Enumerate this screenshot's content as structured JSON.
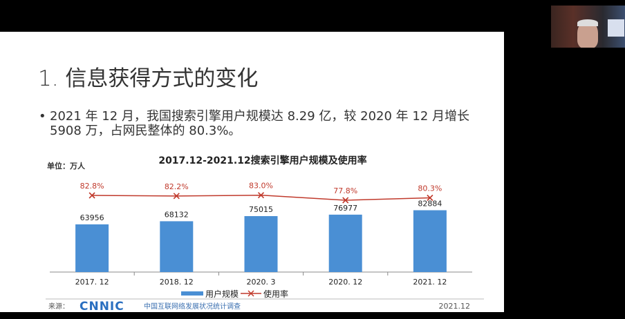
{
  "slide": {
    "title": "1. 信息获得方式的变化",
    "bullet": "2021 年 12 月，我国搜索引擎用户规模达 8.29 亿，较 2020 年 12 月增长 5908 万，占网民整体的 80.3%。",
    "bullet_marker": "•"
  },
  "chart_data": {
    "type": "bar",
    "title": "2017.12-2021.12搜索引擎用户规模及使用率",
    "unit_label": "单位：万人",
    "categories": [
      "2017. 12",
      "2018. 12",
      "2020. 3",
      "2020. 12",
      "2021. 12"
    ],
    "series": [
      {
        "name": "用户规模",
        "type": "bar",
        "values": [
          63956,
          68132,
          75015,
          76977,
          82884
        ],
        "labels": [
          "63956",
          "68132",
          "75015",
          "76977",
          "82884"
        ],
        "color": "#4a8fd4"
      },
      {
        "name": "使用率",
        "type": "line",
        "values": [
          82.8,
          82.2,
          83.0,
          77.8,
          80.3
        ],
        "labels": [
          "82.8%",
          "82.2%",
          "83.0%",
          "77.8%",
          "80.3%"
        ],
        "color": "#c0392b",
        "marker": "x"
      }
    ],
    "legend_placement": "bottom",
    "grid": false
  },
  "footer": {
    "source_label": "来源：",
    "logo_text": "CNNIC",
    "source_text": "中国互联网络发展状况统计调查",
    "date": "2021.12"
  },
  "colors": {
    "bar": "#4a8fd4",
    "line": "#c0392b",
    "logo": "#2a6fc0"
  }
}
